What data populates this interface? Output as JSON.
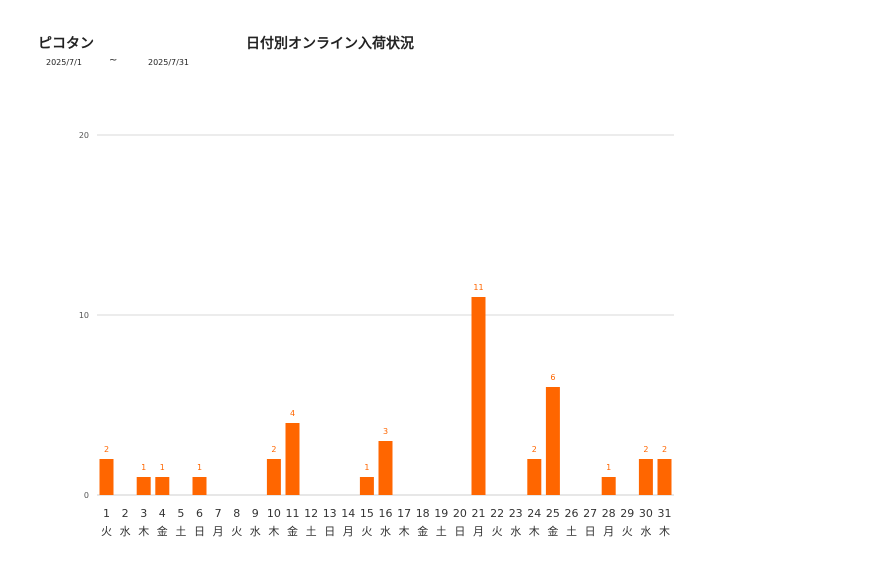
{
  "header": {
    "store_name": "ピコタン",
    "title": "日付別オンライン入荷状況",
    "date_from": "2025/7/1",
    "date_sep": "~",
    "date_to": "2025/7/31"
  },
  "chart_data": {
    "type": "bar",
    "color": "#ff6600",
    "ylim": [
      0,
      20
    ],
    "yticks": [
      0,
      10,
      20
    ],
    "grid": true,
    "categories": [
      "1",
      "2",
      "3",
      "4",
      "5",
      "6",
      "7",
      "8",
      "9",
      "10",
      "11",
      "12",
      "13",
      "14",
      "15",
      "16",
      "17",
      "18",
      "19",
      "20",
      "21",
      "22",
      "23",
      "24",
      "25",
      "26",
      "27",
      "28",
      "29",
      "30",
      "31"
    ],
    "weekdays": [
      "火",
      "水",
      "木",
      "金",
      "土",
      "日",
      "月",
      "火",
      "水",
      "木",
      "金",
      "土",
      "日",
      "月",
      "火",
      "水",
      "木",
      "金",
      "土",
      "日",
      "月",
      "火",
      "水",
      "木",
      "金",
      "土",
      "日",
      "月",
      "火",
      "水",
      "木"
    ],
    "values": [
      2,
      0,
      1,
      1,
      0,
      1,
      0,
      0,
      0,
      2,
      4,
      0,
      0,
      0,
      1,
      3,
      0,
      0,
      0,
      0,
      11,
      0,
      0,
      2,
      6,
      0,
      0,
      1,
      0,
      2,
      2
    ]
  }
}
